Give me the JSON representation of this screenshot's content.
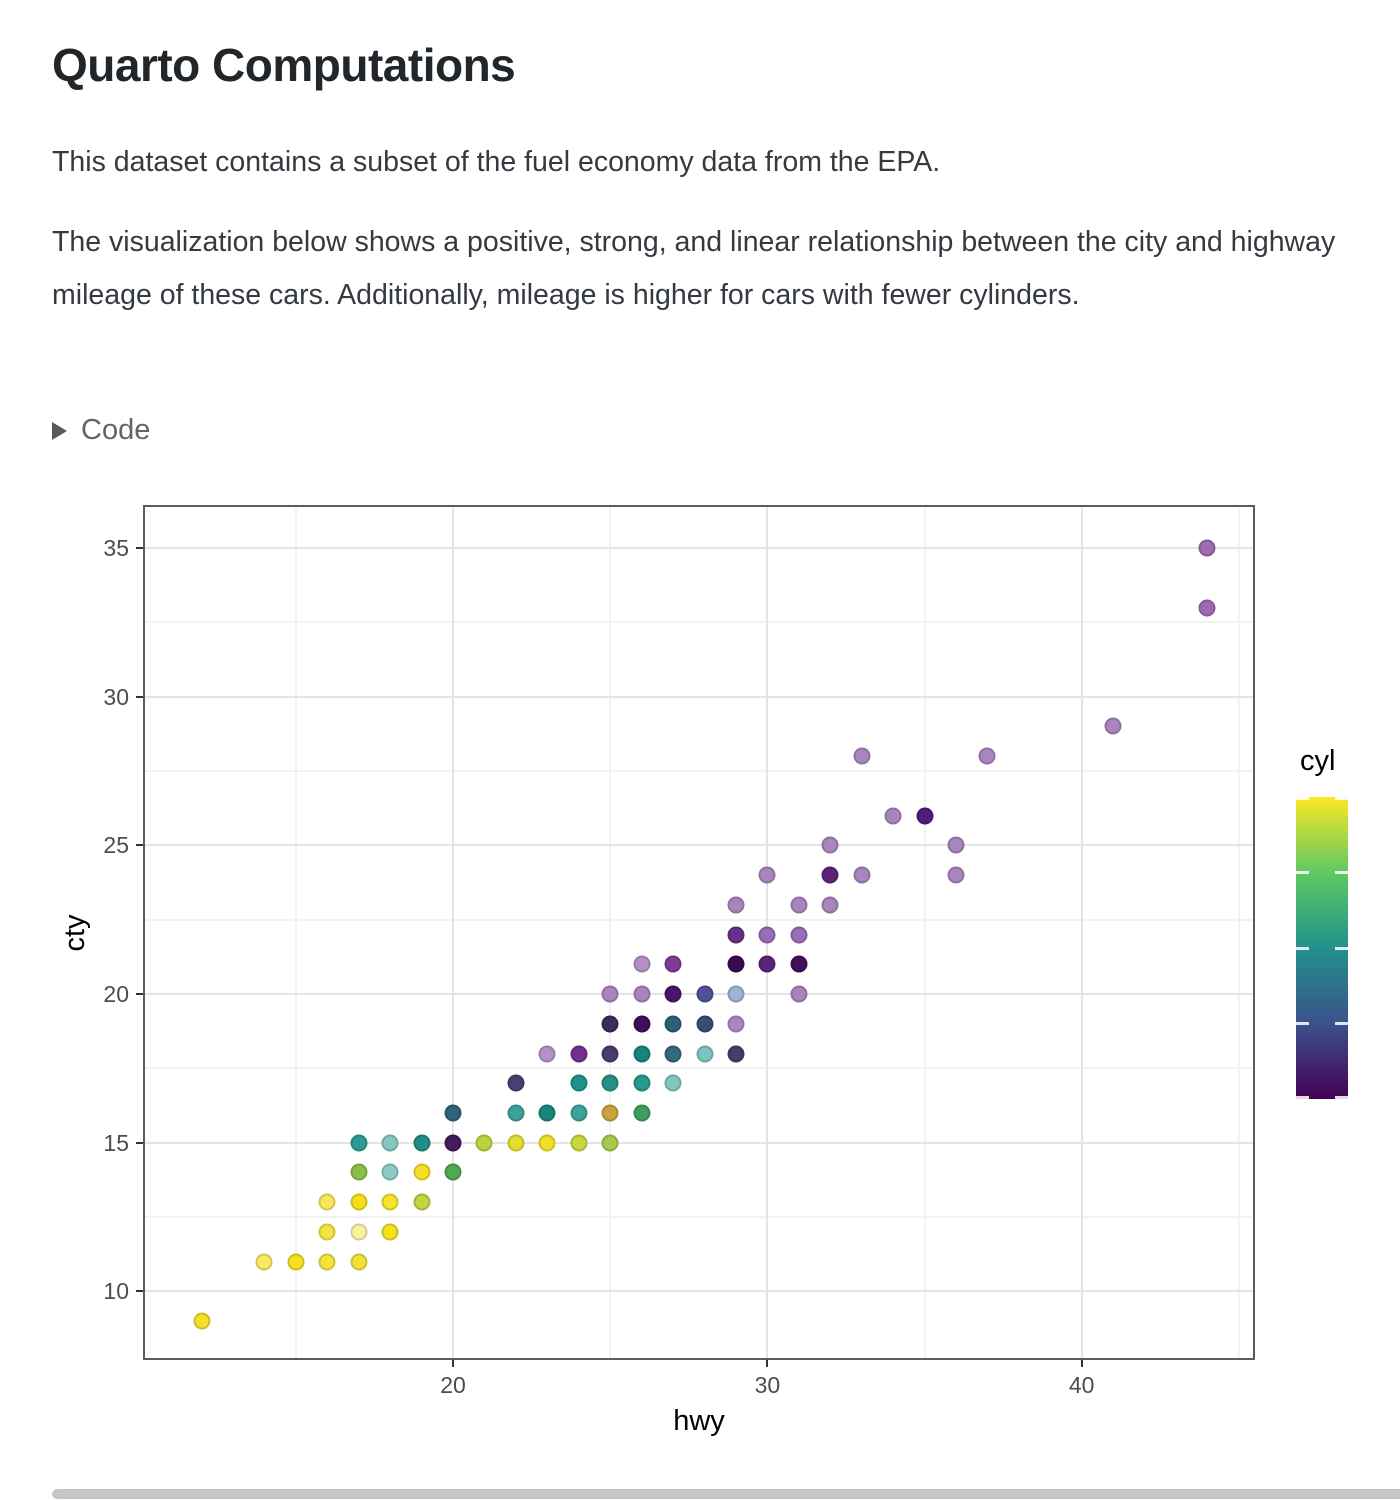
{
  "page": {
    "title": "Quarto Computations",
    "paragraph1": "This dataset contains a subset of the fuel economy data from the EPA.",
    "paragraph2": "The visualization below shows a positive, strong, and linear relationship between the city and highway mileage of these cars. Additionally, mileage is higher for cars with fewer cylinders.",
    "code_toggle": {
      "label": "Code",
      "icon": "triangle-right-icon",
      "state": "collapsed"
    }
  },
  "chart_data": {
    "type": "scatter",
    "title": "",
    "xlabel": "hwy",
    "ylabel": "cty",
    "xlim": [
      10.2,
      45.45
    ],
    "ylim": [
      7.76,
      36.38
    ],
    "x_ticks": [
      20,
      30,
      40
    ],
    "x_minor_breaks": [
      15,
      25,
      35,
      45
    ],
    "y_ticks": [
      10,
      15,
      20,
      25,
      30,
      35
    ],
    "y_minor_breaks": [
      12.5,
      17.5,
      22.5,
      27.5,
      32.5
    ],
    "grid": "on",
    "panel_border_color": "#5c5c5c",
    "major_grid_color": "#e4e4e4",
    "minor_grid_color": "#f2f2f2",
    "legend": {
      "position": "right",
      "title": "cyl",
      "type": "colorbar",
      "range": [
        4,
        8
      ],
      "ticks": [
        4,
        5,
        6,
        7,
        8
      ],
      "tick_labels_visible": false,
      "gradient_top_to_bottom": [
        "#fde725",
        "#5ec962",
        "#21918c",
        "#3b528b",
        "#440154"
      ]
    },
    "points": [
      {
        "hwy": 12,
        "cty": 9,
        "color": "#f2e029"
      },
      {
        "hwy": 14,
        "cty": 11,
        "color": "#f8e964"
      },
      {
        "hwy": 15,
        "cty": 11,
        "color": "#f4e01e"
      },
      {
        "hwy": 16,
        "cty": 11,
        "color": "#f5e33c"
      },
      {
        "hwy": 17,
        "cty": 11,
        "color": "#f3e139"
      },
      {
        "hwy": 16,
        "cty": 12,
        "color": "#f6e343"
      },
      {
        "hwy": 17,
        "cty": 12,
        "color": "#faf0a2"
      },
      {
        "hwy": 18,
        "cty": 12,
        "color": "#f5e01c"
      },
      {
        "hwy": 16,
        "cty": 13,
        "color": "#f7e75c"
      },
      {
        "hwy": 17,
        "cty": 13,
        "color": "#f4df17"
      },
      {
        "hwy": 18,
        "cty": 13,
        "color": "#f6e32e"
      },
      {
        "hwy": 19,
        "cty": 13,
        "color": "#c2d53f"
      },
      {
        "hwy": 17,
        "cty": 14,
        "color": "#8abf48"
      },
      {
        "hwy": 18,
        "cty": 14,
        "color": "#8fcbc5"
      },
      {
        "hwy": 19,
        "cty": 14,
        "color": "#f4e126"
      },
      {
        "hwy": 20,
        "cty": 14,
        "color": "#4fa952"
      },
      {
        "hwy": 17,
        "cty": 15,
        "color": "#2d9a93"
      },
      {
        "hwy": 18,
        "cty": 15,
        "color": "#85c6c1"
      },
      {
        "hwy": 19,
        "cty": 15,
        "color": "#1f8e87"
      },
      {
        "hwy": 20,
        "cty": 15,
        "color": "#441c5c"
      },
      {
        "hwy": 21,
        "cty": 15,
        "color": "#bcd43c"
      },
      {
        "hwy": 22,
        "cty": 15,
        "color": "#e4de33"
      },
      {
        "hwy": 23,
        "cty": 15,
        "color": "#f2e028"
      },
      {
        "hwy": 24,
        "cty": 15,
        "color": "#c6d83e"
      },
      {
        "hwy": 25,
        "cty": 15,
        "color": "#a6c94b"
      },
      {
        "hwy": 20,
        "cty": 16,
        "color": "#2e6475"
      },
      {
        "hwy": 22,
        "cty": 16,
        "color": "#3ba39b"
      },
      {
        "hwy": 23,
        "cty": 16,
        "color": "#17877e"
      },
      {
        "hwy": 24,
        "cty": 16,
        "color": "#3ba39b"
      },
      {
        "hwy": 25,
        "cty": 16,
        "color": "#c9a43e"
      },
      {
        "hwy": 26,
        "cty": 16,
        "color": "#3f9e5d"
      },
      {
        "hwy": 22,
        "cty": 17,
        "color": "#4a3f72"
      },
      {
        "hwy": 24,
        "cty": 17,
        "color": "#1d938a"
      },
      {
        "hwy": 25,
        "cty": 17,
        "color": "#259189"
      },
      {
        "hwy": 26,
        "cty": 17,
        "color": "#29998f"
      },
      {
        "hwy": 27,
        "cty": 17,
        "color": "#83c6c0"
      },
      {
        "hwy": 23,
        "cty": 18,
        "color": "#b292c4"
      },
      {
        "hwy": 24,
        "cty": 18,
        "color": "#722f8e"
      },
      {
        "hwy": 25,
        "cty": 18,
        "color": "#4a3a70"
      },
      {
        "hwy": 26,
        "cty": 18,
        "color": "#17857c"
      },
      {
        "hwy": 27,
        "cty": 18,
        "color": "#33687f"
      },
      {
        "hwy": 28,
        "cty": 18,
        "color": "#7fc3be"
      },
      {
        "hwy": 29,
        "cty": 18,
        "color": "#4a3a6e"
      },
      {
        "hwy": 25,
        "cty": 19,
        "color": "#3d2a60"
      },
      {
        "hwy": 26,
        "cty": 19,
        "color": "#420d57"
      },
      {
        "hwy": 27,
        "cty": 19,
        "color": "#2d5f79"
      },
      {
        "hwy": 28,
        "cty": 19,
        "color": "#3c4b74"
      },
      {
        "hwy": 29,
        "cty": 19,
        "color": "#ab87bf"
      },
      {
        "hwy": 25,
        "cty": 20,
        "color": "#aa82bd"
      },
      {
        "hwy": 26,
        "cty": 20,
        "color": "#aa82bd"
      },
      {
        "hwy": 27,
        "cty": 20,
        "color": "#4c1467"
      },
      {
        "hwy": 28,
        "cty": 20,
        "color": "#4f5296"
      },
      {
        "hwy": 29,
        "cty": 20,
        "color": "#9fb3d6"
      },
      {
        "hwy": 31,
        "cty": 20,
        "color": "#aa82bd"
      },
      {
        "hwy": 26,
        "cty": 21,
        "color": "#b48fc5"
      },
      {
        "hwy": 27,
        "cty": 21,
        "color": "#7e3d94"
      },
      {
        "hwy": 29,
        "cty": 21,
        "color": "#380a4e"
      },
      {
        "hwy": 30,
        "cty": 21,
        "color": "#5c2478"
      },
      {
        "hwy": 31,
        "cty": 21,
        "color": "#431060"
      },
      {
        "hwy": 29,
        "cty": 22,
        "color": "#6a3089"
      },
      {
        "hwy": 30,
        "cty": 22,
        "color": "#9a6cb3"
      },
      {
        "hwy": 31,
        "cty": 22,
        "color": "#9a6cb3"
      },
      {
        "hwy": 29,
        "cty": 23,
        "color": "#a885bc"
      },
      {
        "hwy": 31,
        "cty": 23,
        "color": "#a885bc"
      },
      {
        "hwy": 32,
        "cty": 23,
        "color": "#a885bc"
      },
      {
        "hwy": 30,
        "cty": 24,
        "color": "#a885bc"
      },
      {
        "hwy": 32,
        "cty": 24,
        "color": "#5c2478"
      },
      {
        "hwy": 33,
        "cty": 24,
        "color": "#a885bc"
      },
      {
        "hwy": 36,
        "cty": 24,
        "color": "#a885bc"
      },
      {
        "hwy": 32,
        "cty": 25,
        "color": "#a885bc"
      },
      {
        "hwy": 36,
        "cty": 25,
        "color": "#a885bc"
      },
      {
        "hwy": 34,
        "cty": 26,
        "color": "#a885bc"
      },
      {
        "hwy": 35,
        "cty": 26,
        "color": "#541c77"
      },
      {
        "hwy": 33,
        "cty": 28,
        "color": "#a885bc"
      },
      {
        "hwy": 37,
        "cty": 28,
        "color": "#a885bc"
      },
      {
        "hwy": 41,
        "cty": 29,
        "color": "#a885bc"
      },
      {
        "hwy": 44,
        "cty": 33,
        "color": "#9c6bb0"
      },
      {
        "hwy": 44,
        "cty": 35,
        "color": "#9c6bb0"
      }
    ]
  }
}
